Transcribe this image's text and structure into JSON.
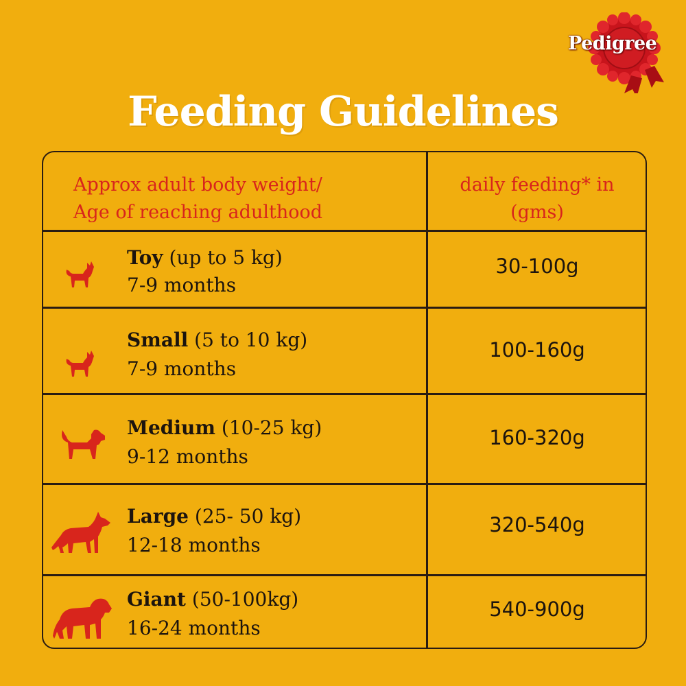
{
  "brand": {
    "logo_text": "Pedigree"
  },
  "title": "Feeding Guidelines",
  "table": {
    "header_left_line1": "Approx adult body weight/",
    "header_left_line2": "Age of reaching adulthood",
    "header_right_line1": "daily feeding* in",
    "header_right_line2": "(gms)",
    "rows": [
      {
        "size": "Toy",
        "weight": "(up to 5 kg)",
        "age": "7-9 months",
        "amount": "30-100g",
        "icon": "toy-dog-icon"
      },
      {
        "size": "Small",
        "weight": "(5 to 10 kg)",
        "age": "7-9 months",
        "amount": "100-160g",
        "icon": "small-dog-icon"
      },
      {
        "size": "Medium",
        "weight": "(10-25 kg)",
        "age": "9-12 months",
        "amount": "160-320g",
        "icon": "medium-dog-icon"
      },
      {
        "size": "Large",
        "weight": "(25- 50 kg)",
        "age": "12-18 months",
        "amount": "320-540g",
        "icon": "large-dog-icon"
      },
      {
        "size": "Giant",
        "weight": "(50-100kg)",
        "age": "16-24 months",
        "amount": "540-900g",
        "icon": "giant-dog-icon"
      }
    ]
  },
  "colors": {
    "background": "#F1AE0E",
    "accent_red": "#D8251C",
    "text_dark": "#1C140E",
    "border": "#2A1C12"
  }
}
